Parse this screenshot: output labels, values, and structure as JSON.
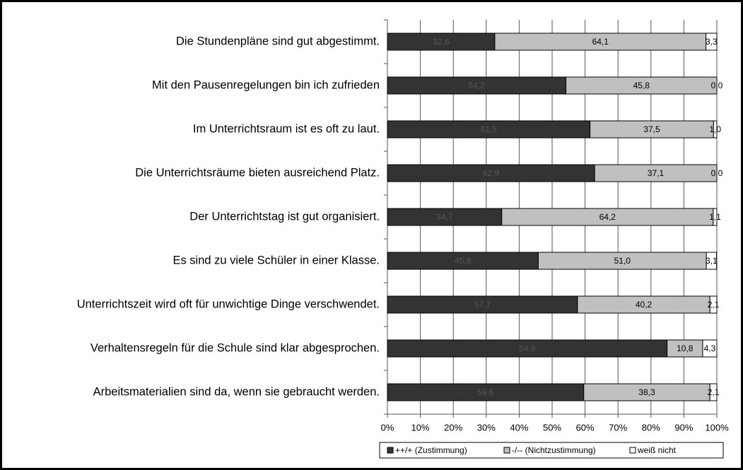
{
  "chart_data": {
    "type": "stacked_barh",
    "categories": [
      "Die Stundenpläne sind gut abgestimmt.",
      "Mit den Pausenregelungen bin ich zufrieden",
      "Im Unterrichtsraum ist es oft zu laut.",
      "Die Unterrichtsräume bieten ausreichend Platz.",
      "Der Unterrichtstag ist gut organisiert.",
      "Es sind zu viele Schüler in einer Klasse.",
      "Unterrichtszeit wird oft für unwichtige Dinge verschwendet.",
      "Verhaltensregeln für die Schule sind klar abgesprochen.",
      "Arbeitsmaterialien sind da, wenn sie gebraucht werden."
    ],
    "series": [
      {
        "name": "++/+ (Zustimmung)",
        "color": "#333333",
        "label_color": "#555555",
        "values": [
          32.6,
          54.2,
          61.5,
          62.9,
          34.7,
          45.8,
          57.7,
          84.9,
          59.6
        ],
        "value_labels": [
          "32,6",
          "54,2",
          "61,5",
          "62,9",
          "34,7",
          "45,8",
          "57,7",
          "84,9",
          "59,6"
        ]
      },
      {
        "name": "-/-- (Nichtzustimmung)",
        "color": "#c0c0c0",
        "label_color": "#000000",
        "values": [
          64.1,
          45.8,
          37.5,
          37.1,
          64.2,
          51.0,
          40.2,
          10.8,
          38.3
        ],
        "value_labels": [
          "64,1",
          "45,8",
          "37,5",
          "37,1",
          "64,2",
          "51,0",
          "40,2",
          "10,8",
          "38,3"
        ]
      },
      {
        "name": "weiß nicht",
        "color": "#ffffff",
        "label_color": "#000000",
        "values": [
          3.3,
          0.0,
          1.0,
          0.0,
          1.1,
          3.1,
          2.1,
          4.3,
          2.1
        ],
        "value_labels": [
          "3,3",
          "0,0",
          "1,0",
          "0,0",
          "1,1",
          "3,1",
          "2,1",
          "4,3",
          "2,1"
        ]
      }
    ],
    "xlim": [
      0,
      100
    ],
    "xticks": [
      {
        "value": 0,
        "label": "0%"
      },
      {
        "value": 10,
        "label": "10%"
      },
      {
        "value": 20,
        "label": "20%"
      },
      {
        "value": 30,
        "label": "30%"
      },
      {
        "value": 40,
        "label": "40%"
      },
      {
        "value": 50,
        "label": "50%"
      },
      {
        "value": 60,
        "label": "60%"
      },
      {
        "value": 70,
        "label": "70%"
      },
      {
        "value": 80,
        "label": "80%"
      },
      {
        "value": 90,
        "label": "90%"
      },
      {
        "value": 100,
        "label": "100%"
      }
    ],
    "grid": true,
    "legend": "bottom"
  }
}
